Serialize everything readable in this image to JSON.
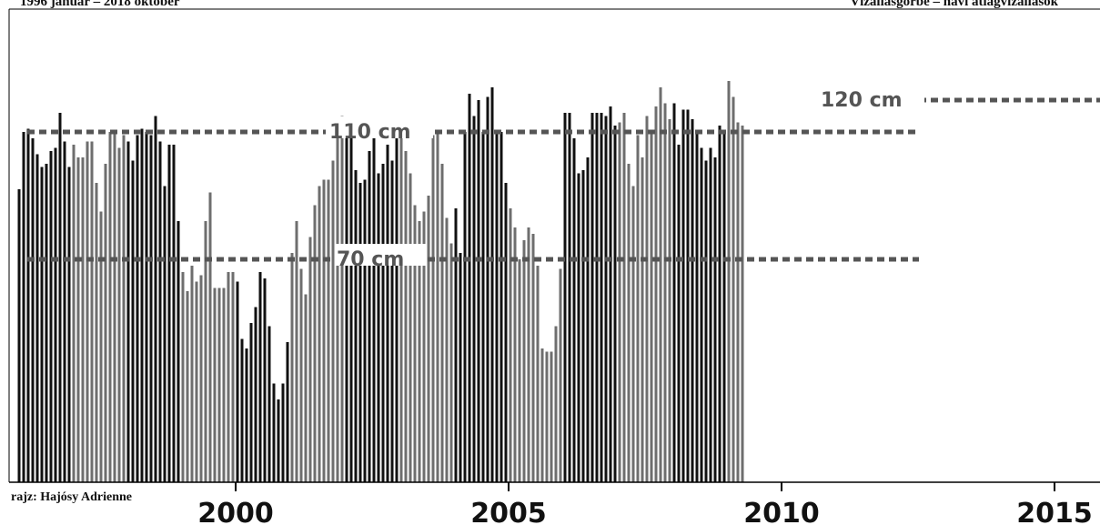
{
  "header": {
    "left": "1996 január – 2018 október",
    "right": "Vízállásgörbe – havi átlagvízállások"
  },
  "credit": "rajz: Hajósy Adrienne",
  "colors": {
    "bar_dark": "#111111",
    "bar_gray": "#6e6e6e",
    "ref_line": "#555555",
    "axis": "#000000"
  },
  "chart_data": {
    "type": "bar",
    "title": "",
    "xlabel": "",
    "ylabel": "",
    "ylim": [
      0,
      130
    ],
    "grid": false,
    "legend": "none",
    "x_start": "1996-01",
    "x_ticks": [
      "2000",
      "2005",
      "2010",
      "2015"
    ],
    "reference_lines": [
      {
        "label": "110 cm",
        "value": 110
      },
      {
        "label": "70 cm",
        "value": 70
      },
      {
        "label": "120 cm",
        "value": 120
      }
    ],
    "series": [
      {
        "values": [
          92,
          110,
          111,
          108,
          103,
          99,
          100,
          104,
          105,
          116,
          107,
          99,
          106,
          102,
          102,
          107,
          107,
          94,
          85,
          100,
          110,
          110,
          105,
          109,
          107,
          101,
          109,
          111,
          110,
          109,
          115,
          107,
          93,
          106,
          106,
          82,
          66,
          60,
          68,
          63,
          65,
          82,
          91,
          61,
          61,
          61,
          66,
          66,
          63,
          45,
          42,
          50,
          55,
          66,
          64,
          49,
          31,
          26,
          31,
          44,
          72,
          82,
          67,
          59,
          77,
          87,
          93,
          95,
          95,
          101,
          111,
          115,
          114,
          111,
          98,
          94,
          95,
          104,
          109,
          97,
          100,
          106,
          101,
          109,
          111,
          104,
          97,
          87,
          82,
          85,
          90,
          109,
          110,
          100,
          83,
          75,
          86,
          72,
          110,
          122,
          115,
          120,
          110,
          121,
          124,
          110,
          110,
          94,
          86,
          80,
          70,
          76,
          80,
          78,
          68,
          42,
          41,
          41,
          49,
          67,
          116,
          116,
          108,
          97,
          98,
          102,
          116,
          116,
          116,
          115,
          118,
          112,
          113,
          116,
          100,
          93,
          109,
          102,
          115,
          110,
          118,
          124,
          119,
          114,
          119,
          106,
          117,
          117,
          114,
          110,
          105,
          101,
          105,
          102,
          112,
          110,
          126,
          121,
          113,
          112
        ]
      }
    ]
  }
}
